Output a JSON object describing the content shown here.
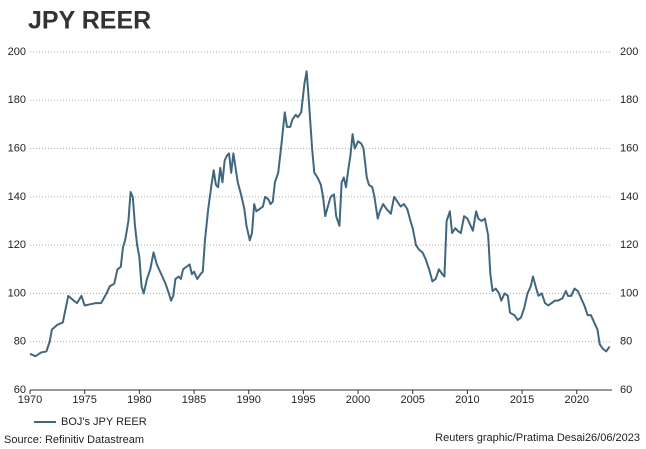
{
  "chart_data": {
    "type": "line",
    "title": "JPY REER",
    "source": "Source: Refinitiv Datastream",
    "credit": "Reuters graphic/Pratima Desai26/06/2023",
    "xlim": [
      1970,
      2023.5
    ],
    "xticks": [
      1970,
      1975,
      1980,
      1985,
      1990,
      1995,
      2000,
      2005,
      2010,
      2015,
      2020
    ],
    "ylim": [
      60,
      200
    ],
    "yticks": [
      60,
      80,
      100,
      120,
      140,
      160,
      180,
      200
    ],
    "grid": true,
    "legend": "bottom-left",
    "x": [
      1970,
      1970.5,
      1971,
      1971.5,
      1971.8,
      1972,
      1972.5,
      1973,
      1973.5,
      1974,
      1974.3,
      1974.7,
      1975,
      1975.5,
      1976,
      1976.5,
      1977,
      1977.3,
      1977.7,
      1978,
      1978.3,
      1978.5,
      1978.7,
      1979,
      1979.2,
      1979.4,
      1979.6,
      1979.8,
      1980,
      1980.2,
      1980.4,
      1980.7,
      1981,
      1981.3,
      1981.6,
      1982,
      1982.4,
      1982.7,
      1982.9,
      1983.1,
      1983.3,
      1983.6,
      1983.8,
      1984,
      1984.3,
      1984.6,
      1984.8,
      1985,
      1985.3,
      1985.6,
      1985.8,
      1986,
      1986.3,
      1986.6,
      1986.8,
      1987,
      1987.2,
      1987.4,
      1987.6,
      1987.8,
      1988,
      1988.2,
      1988.4,
      1988.6,
      1988.8,
      1989,
      1989.3,
      1989.6,
      1989.8,
      1990.1,
      1990.3,
      1990.5,
      1990.7,
      1991,
      1991.3,
      1991.5,
      1991.8,
      1992,
      1992.2,
      1992.4,
      1992.7,
      1993,
      1993.3,
      1993.5,
      1993.8,
      1994,
      1994.3,
      1994.5,
      1994.8,
      1995.1,
      1995.3,
      1995.5,
      1995.8,
      1996,
      1996.3,
      1996.6,
      1996.8,
      1997,
      1997.3,
      1997.5,
      1997.8,
      1998,
      1998.3,
      1998.5,
      1998.7,
      1998.9,
      1999.1,
      1999.3,
      1999.5,
      1999.7,
      2000,
      2000.3,
      2000.5,
      2000.8,
      2001,
      2001.3,
      2001.5,
      2001.8,
      2002,
      2002.3,
      2002.6,
      2002.8,
      2003,
      2003.3,
      2003.6,
      2003.9,
      2004.2,
      2004.5,
      2004.8,
      2005,
      2005.3,
      2005.6,
      2005.9,
      2006.2,
      2006.5,
      2006.8,
      2007.1,
      2007.4,
      2007.7,
      2007.9,
      2008.1,
      2008.4,
      2008.6,
      2008.9,
      2009.1,
      2009.4,
      2009.7,
      2010,
      2010.3,
      2010.5,
      2010.8,
      2011,
      2011.3,
      2011.6,
      2011.9,
      2012.1,
      2012.3,
      2012.6,
      2012.9,
      2013.1,
      2013.4,
      2013.7,
      2013.9,
      2014.3,
      2014.6,
      2014.9,
      2015.2,
      2015.5,
      2015.8,
      2016,
      2016.3,
      2016.5,
      2016.8,
      2017.1,
      2017.4,
      2017.7,
      2018,
      2018.3,
      2018.7,
      2019,
      2019.2,
      2019.5,
      2019.8,
      2020.1,
      2020.4,
      2020.7,
      2021,
      2021.3,
      2021.6,
      2021.9,
      2022.1,
      2022.4,
      2022.7,
      2023
    ],
    "series": [
      {
        "name": "BOJ's JPY REER",
        "color": "#41677e",
        "values": [
          75,
          74,
          75.5,
          76,
          80,
          85,
          87,
          88,
          99,
          97,
          96,
          99,
          95,
          95.5,
          96,
          96,
          100,
          103,
          104,
          110,
          111,
          119,
          122,
          130,
          142,
          140,
          128,
          120,
          115,
          103,
          100,
          106,
          110,
          117,
          112,
          108,
          104,
          100,
          97,
          99,
          106,
          107,
          106,
          110,
          111,
          112,
          108,
          109,
          106,
          108,
          109,
          122,
          135,
          145,
          151,
          145,
          144,
          152,
          146,
          155,
          157,
          158,
          150,
          158,
          152,
          146,
          141,
          135,
          128,
          122,
          125,
          137,
          134,
          135,
          136,
          140,
          139,
          137,
          138,
          146,
          150,
          162,
          175,
          169,
          169,
          172,
          174,
          173,
          175,
          187,
          192,
          180,
          160,
          150,
          148,
          145,
          140,
          132,
          137,
          140,
          141,
          132,
          128,
          146,
          148,
          144,
          151,
          157,
          166,
          160,
          163,
          162,
          160,
          148,
          145,
          144,
          140,
          131,
          134,
          137,
          135,
          134,
          133,
          140,
          138,
          136,
          137,
          135,
          130,
          127,
          120,
          118,
          117,
          114,
          110,
          105,
          106,
          110,
          108,
          107,
          130,
          134,
          125,
          127,
          126,
          125,
          132,
          131,
          128,
          126,
          134,
          131,
          130,
          131,
          124,
          108,
          101,
          102,
          100,
          97,
          100,
          99,
          92,
          91,
          89,
          90,
          94,
          100,
          103,
          107,
          102,
          99,
          100,
          96,
          95,
          96,
          97,
          97,
          98,
          101,
          99,
          99,
          102,
          101,
          98,
          95,
          91,
          91,
          88,
          85,
          79,
          77,
          76,
          78
        ]
      }
    ]
  }
}
